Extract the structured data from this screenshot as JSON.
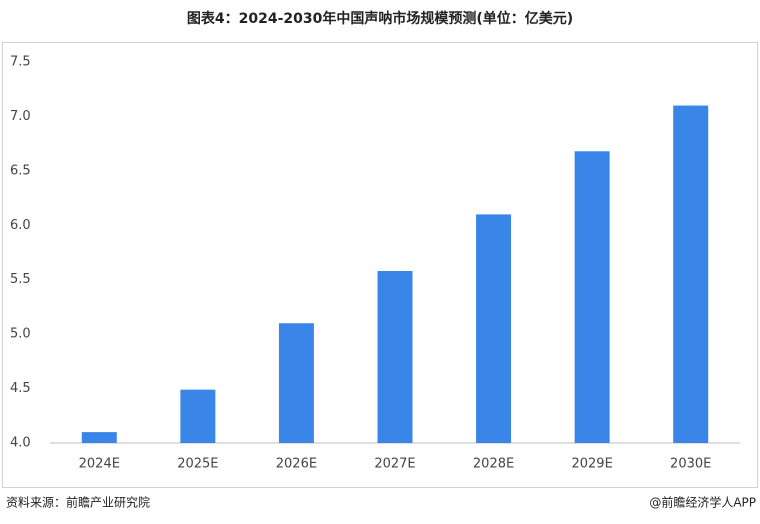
{
  "chart_data": {
    "type": "bar",
    "title": "图表4：2024-2030年中国声呐市场规模预测(单位：亿美元)",
    "categories": [
      "2024E",
      "2025E",
      "2026E",
      "2027E",
      "2028E",
      "2029E",
      "2030E"
    ],
    "values": [
      4.1,
      4.49,
      5.1,
      5.58,
      6.1,
      6.68,
      7.1
    ],
    "color": "#3a86e8",
    "ylim": [
      4.0,
      7.5
    ],
    "yticks": [
      {
        "value": 4,
        "label": "4.0"
      },
      4.5,
      {
        "value": 5,
        "label": "5.0"
      },
      5.5,
      {
        "value": 6,
        "label": "6.0"
      },
      6.5,
      {
        "value": 7,
        "label": "7.0"
      },
      7.5
    ],
    "grid": false,
    "source": "资料来源：前瞻产业研究院",
    "credit": "@前瞻经济学人APP"
  }
}
